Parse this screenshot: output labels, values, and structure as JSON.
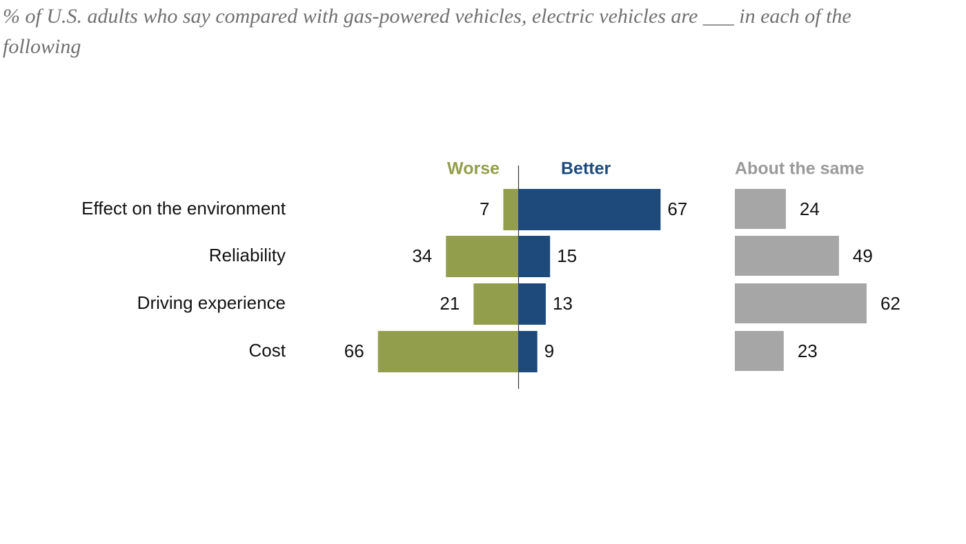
{
  "chart_data": {
    "type": "diverging_bar",
    "title": "% of U.S. adults who say compared with gas-powered vehicles, electric vehicles are ___ in each of the following",
    "categories": [
      "Effect on the environment",
      "Reliability",
      "Driving experience",
      "Cost"
    ],
    "series": [
      {
        "name": "Worse",
        "color": "#939e4c",
        "values": [
          7,
          34,
          21,
          66
        ]
      },
      {
        "name": "Better",
        "color": "#1d4a7b",
        "values": [
          67,
          15,
          13,
          9
        ]
      },
      {
        "name": "About the same",
        "color": "#a6a6a6",
        "values": [
          24,
          49,
          62,
          23
        ]
      }
    ]
  }
}
